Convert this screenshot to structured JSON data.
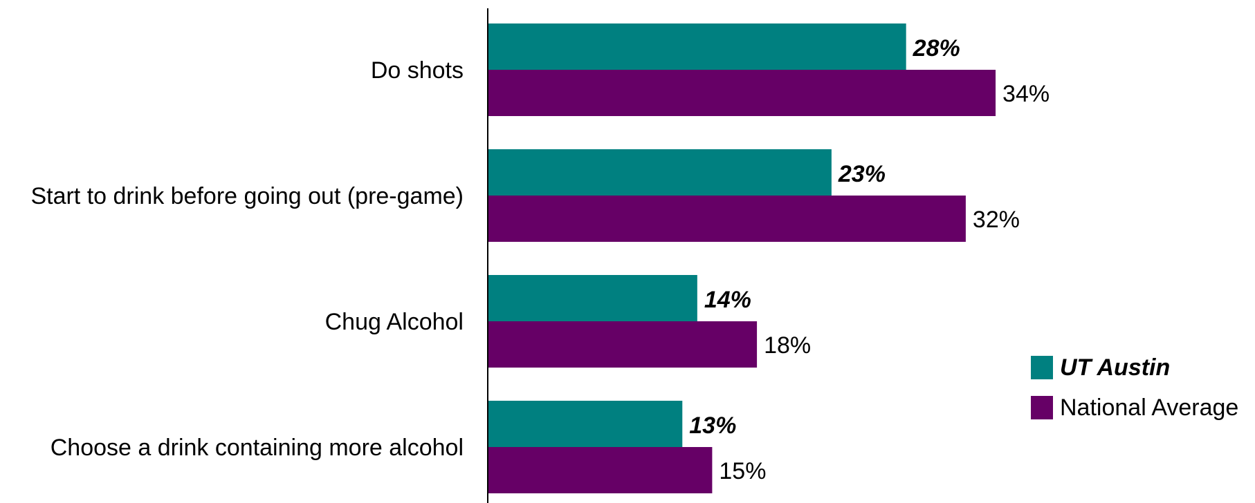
{
  "chart_data": {
    "type": "bar",
    "orientation": "horizontal",
    "categories": [
      "Do shots",
      "Start to drink before going out (pre-game)",
      "Chug Alcohol",
      "Choose a drink containing more alcohol"
    ],
    "series": [
      {
        "name": "UT Austin",
        "values": [
          28,
          23,
          14,
          13
        ],
        "labels": [
          "28%",
          "23%",
          "14%",
          "13%"
        ],
        "color": "#008080",
        "label_style": "bold-italic"
      },
      {
        "name": "National Average",
        "values": [
          34,
          32,
          18,
          15
        ],
        "labels": [
          "34%",
          "32%",
          "18%",
          "15%"
        ],
        "color": "#660066",
        "label_style": "normal"
      }
    ],
    "title": "",
    "xlabel": "",
    "ylabel": "",
    "xlim": [
      0,
      34
    ],
    "grid": false,
    "legend_position": "right"
  }
}
